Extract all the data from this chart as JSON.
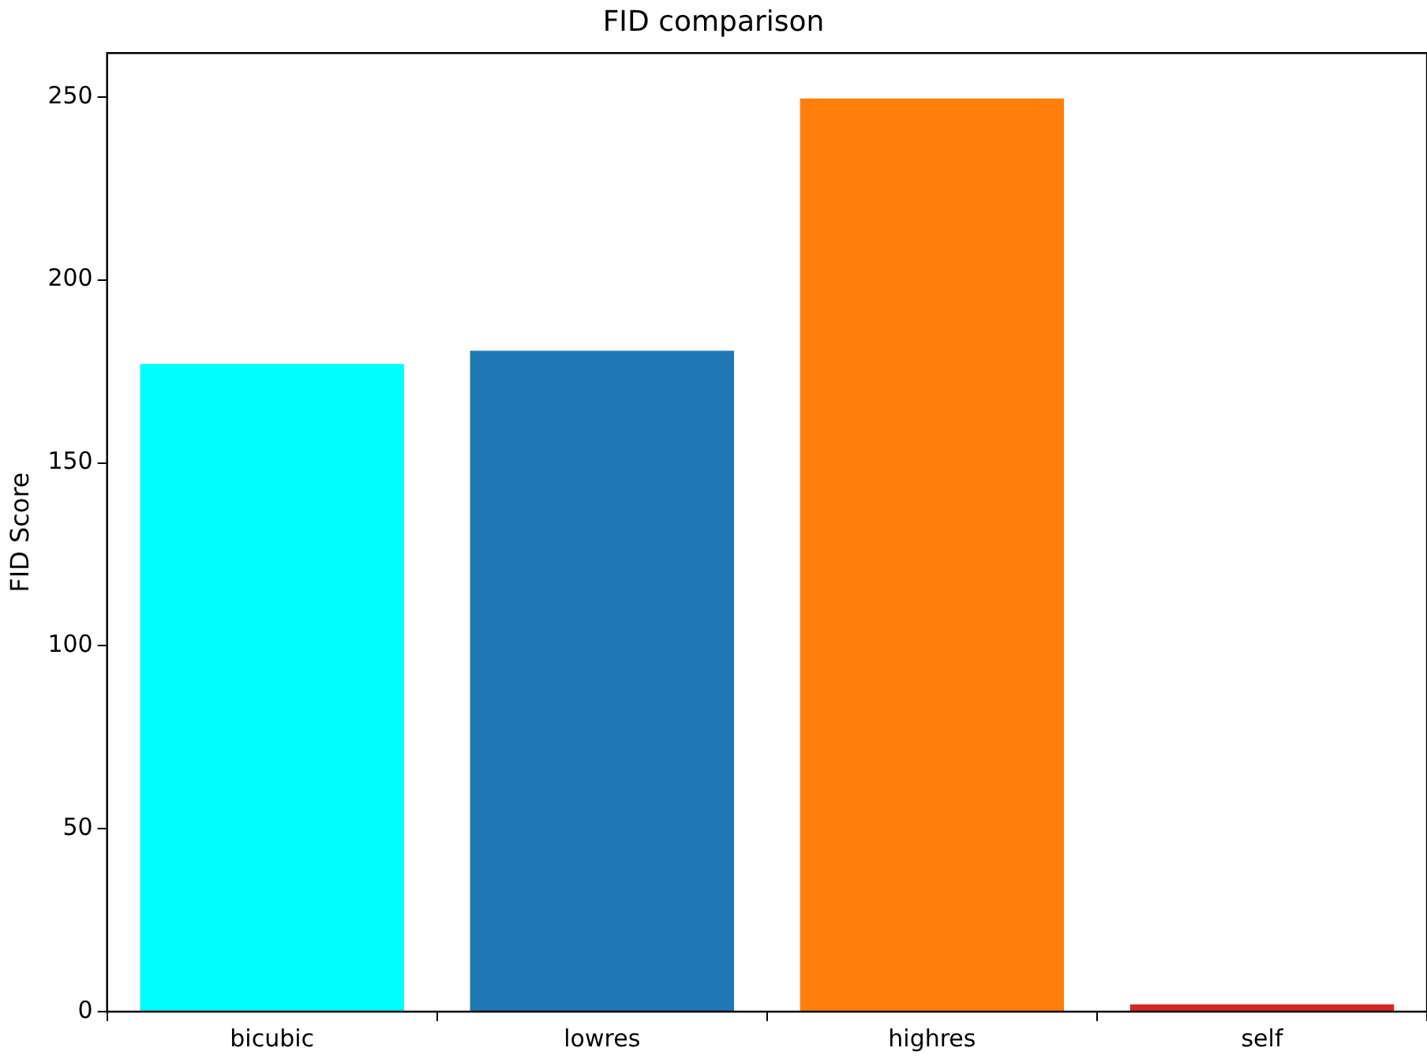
{
  "chart_data": {
    "type": "bar",
    "title": "FID comparison",
    "ylabel": "FID Score",
    "categories": [
      "bicubic",
      "lowres",
      "highres",
      "self"
    ],
    "values": [
      177,
      180.6,
      249.6,
      2
    ],
    "colors": [
      "#00ffff",
      "#1f77b4",
      "#ff7f0e",
      "#d62728"
    ],
    "ylim": [
      0,
      262
    ],
    "yticks": [
      0,
      50,
      100,
      150,
      200,
      250
    ],
    "grid": false,
    "legend": false
  }
}
